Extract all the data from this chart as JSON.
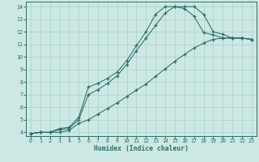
{
  "xlabel": "Humidex (Indice chaleur)",
  "bg_color": "#cce8e4",
  "line_color": "#2d6e64",
  "grid_color": "#aacfca",
  "xlim": [
    -0.5,
    23.5
  ],
  "ylim": [
    3.7,
    14.4
  ],
  "xticks": [
    0,
    1,
    2,
    3,
    4,
    5,
    6,
    7,
    8,
    9,
    10,
    11,
    12,
    13,
    14,
    15,
    16,
    17,
    18,
    19,
    20,
    21,
    22,
    23
  ],
  "yticks": [
    4,
    5,
    6,
    7,
    8,
    9,
    10,
    11,
    12,
    13,
    14
  ],
  "line1_x": [
    0,
    1,
    2,
    3,
    4,
    5,
    6,
    7,
    8,
    9,
    10,
    11,
    12,
    13,
    14,
    15,
    16,
    17,
    18,
    19,
    20,
    21,
    22,
    23
  ],
  "line1_y": [
    3.9,
    4.0,
    4.0,
    4.3,
    4.4,
    5.2,
    7.6,
    7.9,
    8.3,
    8.8,
    9.7,
    10.9,
    12.0,
    13.4,
    14.0,
    14.0,
    13.85,
    13.25,
    11.95,
    11.75,
    11.5,
    11.5,
    11.5,
    11.4
  ],
  "line2_x": [
    0,
    1,
    2,
    3,
    4,
    5,
    6,
    7,
    8,
    9,
    10,
    11,
    12,
    13,
    14,
    15,
    16,
    17,
    18,
    19,
    20,
    21,
    22,
    23
  ],
  "line2_y": [
    3.9,
    4.0,
    4.0,
    4.2,
    4.3,
    5.0,
    7.0,
    7.4,
    7.9,
    8.5,
    9.4,
    10.5,
    11.5,
    12.5,
    13.5,
    14.0,
    14.0,
    14.0,
    13.4,
    12.0,
    11.8,
    11.5,
    11.5,
    11.4
  ],
  "line3_x": [
    0,
    1,
    2,
    3,
    4,
    5,
    6,
    7,
    8,
    9,
    10,
    11,
    12,
    13,
    14,
    15,
    16,
    17,
    18,
    19,
    20,
    21,
    22,
    23
  ],
  "line3_y": [
    3.9,
    4.0,
    4.0,
    4.0,
    4.15,
    4.7,
    5.0,
    5.45,
    5.9,
    6.35,
    6.85,
    7.35,
    7.85,
    8.45,
    9.05,
    9.65,
    10.2,
    10.7,
    11.1,
    11.4,
    11.5,
    11.5,
    11.5,
    11.4
  ]
}
